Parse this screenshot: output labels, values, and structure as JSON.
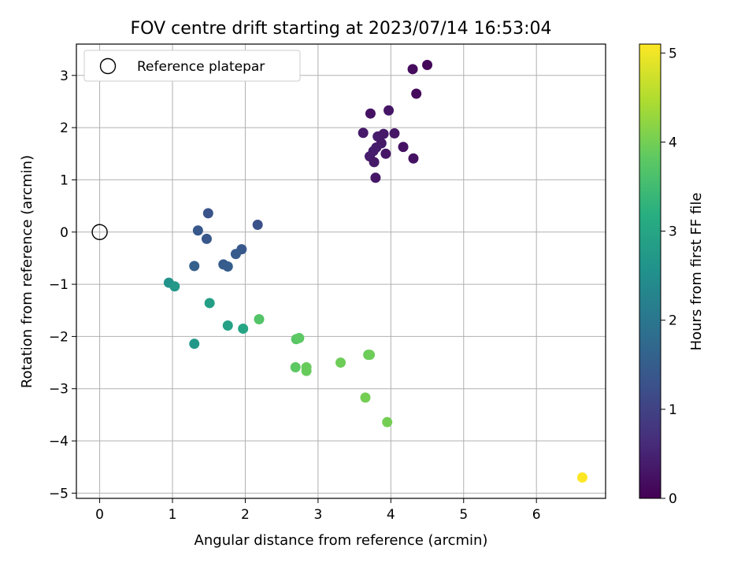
{
  "chart_data": {
    "type": "scatter",
    "title": "FOV centre drift starting at 2023/07/14 16:53:04",
    "xlabel": "Angular distance from reference (arcmin)",
    "ylabel": "Rotation from reference (arcmin)",
    "xlim": [
      -0.32,
      6.95
    ],
    "ylim": [
      -5.1,
      3.6
    ],
    "xticks": [
      0,
      1,
      2,
      3,
      4,
      5,
      6
    ],
    "xtick_labels": [
      "0",
      "1",
      "2",
      "3",
      "4",
      "5",
      "6"
    ],
    "yticks": [
      3,
      2,
      1,
      0,
      -1,
      -2,
      -3,
      -4,
      -5
    ],
    "ytick_labels": [
      "3",
      "2",
      "1",
      "0",
      "−1",
      "−2",
      "−3",
      "−4",
      "−5"
    ],
    "grid": true,
    "legend": {
      "placement": "top-left",
      "entries": [
        "Reference platepar"
      ]
    },
    "reference_point": {
      "x": 0,
      "y": 0,
      "marker": "open-circle"
    },
    "colorbar": {
      "label": "Hours from first FF file",
      "cmap": "viridis",
      "range": [
        0,
        5.1
      ],
      "ticks": [
        0,
        1,
        2,
        3,
        4,
        5
      ],
      "tick_labels": [
        "0",
        "1",
        "2",
        "3",
        "4",
        "5"
      ]
    },
    "points": [
      {
        "x": 4.5,
        "y": 3.2,
        "c": 0.1
      },
      {
        "x": 4.3,
        "y": 3.12,
        "c": 0.15
      },
      {
        "x": 4.35,
        "y": 2.65,
        "c": 0.12
      },
      {
        "x": 3.97,
        "y": 2.33,
        "c": 0.3
      },
      {
        "x": 3.72,
        "y": 2.27,
        "c": 0.25
      },
      {
        "x": 3.62,
        "y": 1.9,
        "c": 0.35
      },
      {
        "x": 3.82,
        "y": 1.83,
        "c": 0.4
      },
      {
        "x": 3.9,
        "y": 1.88,
        "c": 0.35
      },
      {
        "x": 4.05,
        "y": 1.89,
        "c": 0.3
      },
      {
        "x": 3.87,
        "y": 1.7,
        "c": 0.35
      },
      {
        "x": 3.8,
        "y": 1.62,
        "c": 0.4
      },
      {
        "x": 3.76,
        "y": 1.55,
        "c": 0.4
      },
      {
        "x": 4.17,
        "y": 1.63,
        "c": 0.25
      },
      {
        "x": 3.93,
        "y": 1.5,
        "c": 0.3
      },
      {
        "x": 3.71,
        "y": 1.45,
        "c": 0.4
      },
      {
        "x": 3.77,
        "y": 1.34,
        "c": 0.35
      },
      {
        "x": 4.31,
        "y": 1.41,
        "c": 0.25
      },
      {
        "x": 3.79,
        "y": 1.04,
        "c": 0.3
      },
      {
        "x": 1.49,
        "y": 0.36,
        "c": 1.3
      },
      {
        "x": 1.35,
        "y": 0.03,
        "c": 1.4
      },
      {
        "x": 1.47,
        "y": -0.13,
        "c": 1.4
      },
      {
        "x": 2.17,
        "y": 0.14,
        "c": 1.25
      },
      {
        "x": 1.95,
        "y": -0.33,
        "c": 1.4
      },
      {
        "x": 1.87,
        "y": -0.42,
        "c": 1.45
      },
      {
        "x": 1.3,
        "y": -0.65,
        "c": 1.55
      },
      {
        "x": 1.7,
        "y": -0.62,
        "c": 1.45
      },
      {
        "x": 1.76,
        "y": -0.66,
        "c": 1.5
      },
      {
        "x": 0.95,
        "y": -0.97,
        "c": 2.6
      },
      {
        "x": 1.03,
        "y": -1.04,
        "c": 2.7
      },
      {
        "x": 1.51,
        "y": -1.36,
        "c": 2.85
      },
      {
        "x": 1.76,
        "y": -1.79,
        "c": 2.9
      },
      {
        "x": 1.97,
        "y": -1.85,
        "c": 3.0
      },
      {
        "x": 1.3,
        "y": -2.14,
        "c": 2.7
      },
      {
        "x": 2.19,
        "y": -1.67,
        "c": 3.7
      },
      {
        "x": 2.7,
        "y": -2.05,
        "c": 3.75
      },
      {
        "x": 2.74,
        "y": -2.03,
        "c": 3.8
      },
      {
        "x": 2.69,
        "y": -2.59,
        "c": 3.8
      },
      {
        "x": 2.84,
        "y": -2.59,
        "c": 3.9
      },
      {
        "x": 2.84,
        "y": -2.66,
        "c": 3.9
      },
      {
        "x": 3.31,
        "y": -2.5,
        "c": 3.95
      },
      {
        "x": 3.69,
        "y": -2.35,
        "c": 3.9
      },
      {
        "x": 3.71,
        "y": -2.35,
        "c": 3.95
      },
      {
        "x": 3.65,
        "y": -3.17,
        "c": 4.0
      },
      {
        "x": 3.95,
        "y": -3.64,
        "c": 4.0
      },
      {
        "x": 6.63,
        "y": -4.7,
        "c": 5.1
      }
    ]
  }
}
